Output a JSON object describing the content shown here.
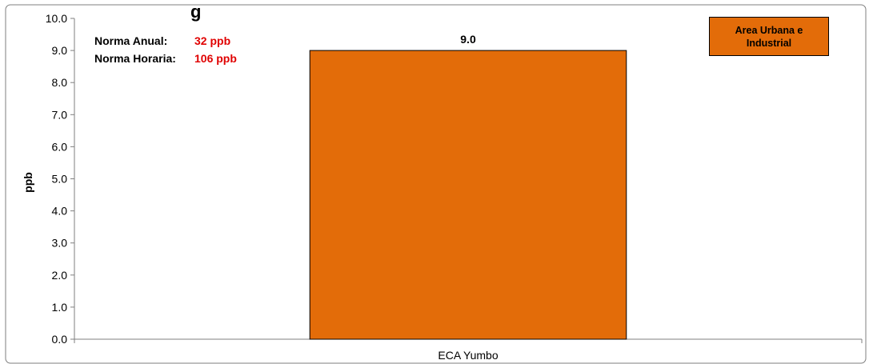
{
  "chart_data": {
    "type": "bar",
    "title_fragment": "g",
    "categories": [
      "ECA Yumbo"
    ],
    "values": [
      9.0
    ],
    "data_labels": [
      "9.0"
    ],
    "ylabel": "ppb",
    "xlabel": "",
    "ylim": [
      0,
      10
    ],
    "yticks": [
      "0.0",
      "1.0",
      "2.0",
      "3.0",
      "4.0",
      "5.0",
      "6.0",
      "7.0",
      "8.0",
      "9.0",
      "10.0"
    ],
    "grid": false,
    "legend": {
      "label": "Area Urbana e Industrial",
      "placement": "top-right"
    },
    "bar_color": "#E36C09",
    "annotations": [
      {
        "label": "Norma Anual:",
        "value": "32 ppb"
      },
      {
        "label": "Norma Horaria:",
        "value": "106 ppb"
      }
    ]
  }
}
